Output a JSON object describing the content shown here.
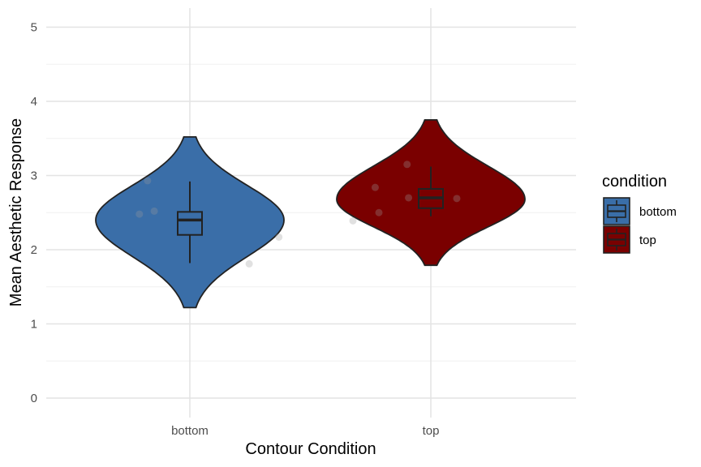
{
  "chart_data": {
    "type": "violin",
    "xlabel": "Contour Condition",
    "ylabel": "Mean Aesthetic Response",
    "categories": [
      "bottom",
      "top"
    ],
    "y_ticks": [
      "0",
      "1",
      "2",
      "3",
      "4",
      "5"
    ],
    "ylim": [
      -0.2,
      5.25
    ],
    "grid": true,
    "legend": {
      "title": "condition",
      "position": "right",
      "entries": [
        {
          "label": "bottom",
          "color": "#3a6ea8"
        },
        {
          "label": "top",
          "color": "#7a0000"
        }
      ]
    },
    "series": [
      {
        "category": "bottom",
        "color": "#3a6ea8",
        "violin_range": [
          1.22,
          3.52
        ],
        "violin_mode": 2.4,
        "box": {
          "min": 1.82,
          "q1": 2.2,
          "median": 2.4,
          "q3": 2.51,
          "max": 2.92
        },
        "points": [
          [
            -0.68,
            2.48
          ],
          [
            -0.57,
            2.93
          ],
          [
            -0.48,
            2.52
          ],
          [
            0.8,
            1.81
          ],
          [
            1.2,
            2.17
          ]
        ]
      },
      {
        "category": "top",
        "color": "#7a0000",
        "violin_range": [
          1.79,
          3.75
        ],
        "violin_mode": 2.68,
        "box": {
          "min": 2.45,
          "q1": 2.56,
          "median": 2.7,
          "q3": 2.82,
          "max": 3.12
        },
        "points": [
          [
            -1.05,
            2.39
          ],
          [
            -0.75,
            2.84
          ],
          [
            -0.32,
            3.15
          ],
          [
            -0.3,
            2.7
          ],
          [
            0.35,
            2.69
          ],
          [
            -0.7,
            2.5
          ]
        ]
      }
    ]
  }
}
